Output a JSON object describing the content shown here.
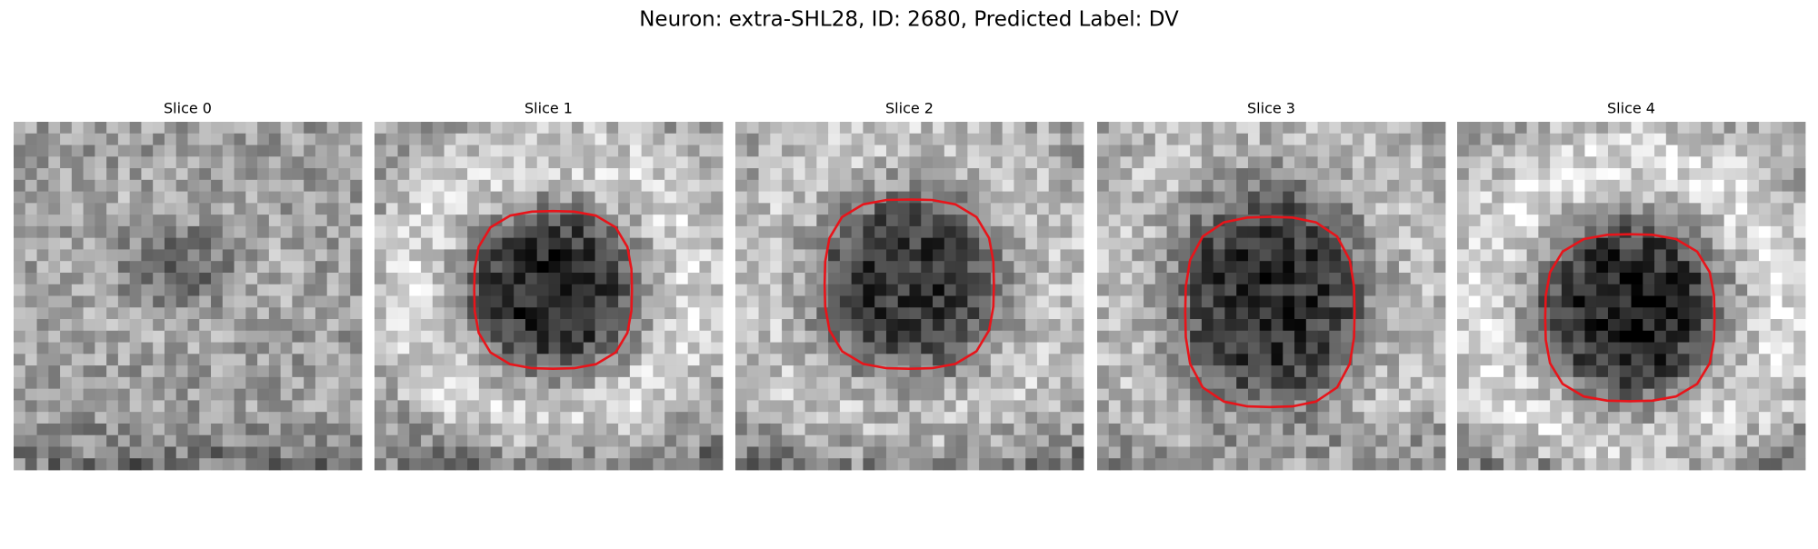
{
  "title": "Neuron: extra-SHL28, ID: 2680, Predicted Label: DV",
  "panels": [
    {
      "title": "Slice 0"
    },
    {
      "title": "Slice 1"
    },
    {
      "title": "Slice 2"
    },
    {
      "title": "Slice 3"
    },
    {
      "title": "Slice 4"
    }
  ]
}
